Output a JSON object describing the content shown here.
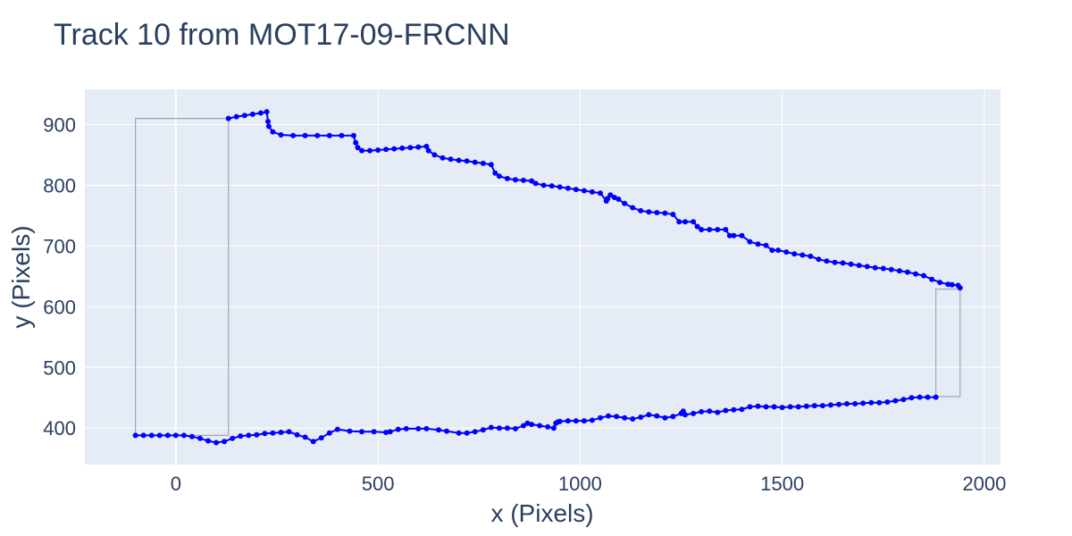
{
  "chart_data": {
    "type": "line",
    "title": "Track 10 from MOT17-09-FRCNN",
    "xlabel": "x (Pixels)",
    "ylabel": "y (Pixels)",
    "xlim": [
      -225,
      2040
    ],
    "ylim": [
      340,
      958
    ],
    "xticks": [
      0,
      500,
      1000,
      1500,
      2000
    ],
    "yticks": [
      400,
      500,
      600,
      700,
      800,
      900
    ],
    "grid": true,
    "colors": {
      "trajectory": "#0000ff",
      "box": "#a0a7b4",
      "plot_bg": "#e5ecf6",
      "grid": "#ffffff",
      "text": "#2a3f5f"
    },
    "series": [
      {
        "role": "start-bounding-box",
        "x": [
          -100,
          130,
          130,
          -100,
          -100
        ],
        "y": [
          388,
          388,
          910,
          910,
          388
        ]
      },
      {
        "role": "end-bounding-box",
        "x": [
          1880,
          1940,
          1940,
          1880,
          1880
        ],
        "y": [
          452,
          452,
          629,
          629,
          452
        ]
      },
      {
        "role": "trajectory-top",
        "x": [
          130,
          150,
          170,
          190,
          210,
          225,
          228,
          230,
          240,
          260,
          290,
          320,
          350,
          380,
          410,
          440,
          445,
          450,
          460,
          480,
          500,
          520,
          540,
          560,
          580,
          600,
          620,
          625,
          640,
          660,
          680,
          700,
          720,
          740,
          760,
          780,
          790,
          800,
          820,
          840,
          860,
          880,
          890,
          910,
          930,
          950,
          970,
          990,
          1010,
          1030,
          1050,
          1065,
          1068,
          1075,
          1085,
          1095,
          1110,
          1130,
          1150,
          1170,
          1190,
          1210,
          1230,
          1245,
          1260,
          1280,
          1290,
          1300,
          1320,
          1340,
          1360,
          1370,
          1380,
          1400,
          1420,
          1440,
          1460,
          1475,
          1490,
          1510,
          1530,
          1550,
          1570,
          1590,
          1610,
          1630,
          1650,
          1670,
          1690,
          1710,
          1730,
          1750,
          1770,
          1790,
          1810,
          1830,
          1850,
          1870,
          1890,
          1910,
          1920,
          1935,
          1940
        ],
        "y": [
          910,
          913,
          915,
          917,
          919,
          921,
          905,
          897,
          888,
          883,
          882,
          882,
          882,
          882,
          882,
          882,
          870,
          862,
          857,
          857,
          858,
          859,
          860,
          861,
          862,
          863,
          864,
          857,
          850,
          845,
          843,
          841,
          840,
          838,
          836,
          834,
          820,
          815,
          811,
          809,
          808,
          807,
          803,
          800,
          799,
          797,
          795,
          793,
          791,
          789,
          787,
          774,
          778,
          784,
          780,
          777,
          770,
          763,
          758,
          756,
          755,
          754,
          752,
          740,
          740,
          740,
          732,
          727,
          727,
          727,
          727,
          717,
          717,
          717,
          707,
          703,
          701,
          693,
          693,
          690,
          687,
          685,
          683,
          678,
          675,
          673,
          672,
          670,
          668,
          666,
          664,
          663,
          661,
          659,
          657,
          654,
          651,
          645,
          640,
          637,
          636,
          635,
          631
        ]
      },
      {
        "role": "trajectory-bottom",
        "x": [
          -100,
          -80,
          -60,
          -40,
          -20,
          0,
          20,
          40,
          60,
          80,
          100,
          120,
          140,
          160,
          180,
          200,
          220,
          240,
          260,
          280,
          300,
          320,
          340,
          360,
          380,
          400,
          430,
          460,
          490,
          520,
          530,
          550,
          570,
          600,
          620,
          650,
          670,
          700,
          720,
          740,
          760,
          780,
          800,
          820,
          840,
          860,
          870,
          880,
          900,
          920,
          935,
          940,
          945,
          950,
          970,
          990,
          1010,
          1030,
          1050,
          1070,
          1090,
          1110,
          1130,
          1150,
          1170,
          1190,
          1210,
          1230,
          1250,
          1255,
          1260,
          1280,
          1300,
          1320,
          1340,
          1360,
          1380,
          1400,
          1420,
          1440,
          1460,
          1480,
          1500,
          1520,
          1540,
          1560,
          1580,
          1600,
          1620,
          1640,
          1660,
          1680,
          1700,
          1720,
          1740,
          1760,
          1780,
          1800,
          1820,
          1840,
          1860,
          1880
        ],
        "y": [
          388,
          388,
          388,
          388,
          388,
          388,
          388,
          386,
          383,
          379,
          376,
          378,
          383,
          387,
          388,
          389,
          391,
          392,
          393,
          394,
          389,
          385,
          378,
          384,
          392,
          398,
          395,
          394,
          394,
          393,
          394,
          398,
          399,
          399,
          399,
          397,
          395,
          392,
          392,
          394,
          397,
          401,
          400,
          400,
          399,
          404,
          408,
          406,
          404,
          402,
          400,
          408,
          410,
          411,
          412,
          412,
          412,
          413,
          417,
          420,
          419,
          417,
          415,
          418,
          422,
          420,
          417,
          419,
          424,
          428,
          422,
          424,
          427,
          428,
          426,
          429,
          430,
          431,
          435,
          436,
          435,
          435,
          434,
          435,
          435,
          436,
          437,
          437,
          438,
          439,
          440,
          440,
          441,
          442,
          442,
          443,
          445,
          447,
          450,
          451,
          451,
          451
        ]
      }
    ]
  }
}
